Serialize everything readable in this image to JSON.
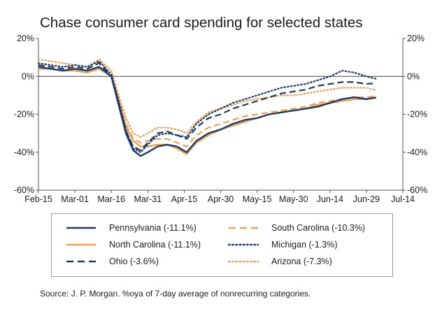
{
  "chart_data": {
    "type": "line",
    "title": "Chase consumer card spending for selected states",
    "x_ticks": [
      "Feb-15",
      "Mar-01",
      "Mar-16",
      "Mar-31",
      "Apr-15",
      "Apr-30",
      "May-15",
      "May-30",
      "Jun-14",
      "Jun-29",
      "Jul-14"
    ],
    "y_ticks_left": [
      "20%",
      "0%",
      "-20%",
      "-40%",
      "-60%"
    ],
    "y_ticks_right": [
      "20%",
      "0%",
      "-20%",
      "-40%",
      "-60%"
    ],
    "ylim": [
      -60,
      20
    ],
    "xlim": [
      "2020-02-15",
      "2020-07-14"
    ],
    "grid": false,
    "reference_line": 0,
    "legend_position": "bottom",
    "series": [
      {
        "name": "Pennsylvania (-11.1%)",
        "color": "#1f3864",
        "dash": "solid",
        "x": [
          "2020-02-15",
          "2020-02-20",
          "2020-02-25",
          "2020-03-01",
          "2020-03-06",
          "2020-03-11",
          "2020-03-16",
          "2020-03-19",
          "2020-03-22",
          "2020-03-25",
          "2020-03-28",
          "2020-03-31",
          "2020-04-04",
          "2020-04-08",
          "2020-04-12",
          "2020-04-16",
          "2020-04-20",
          "2020-04-25",
          "2020-04-30",
          "2020-05-05",
          "2020-05-10",
          "2020-05-15",
          "2020-05-20",
          "2020-05-25",
          "2020-05-30",
          "2020-06-04",
          "2020-06-09",
          "2020-06-14",
          "2020-06-19",
          "2020-06-24",
          "2020-06-29",
          "2020-07-03"
        ],
        "y": [
          5,
          4,
          3,
          4,
          3,
          5,
          0,
          -15,
          -30,
          -39,
          -42,
          -40,
          -37,
          -36,
          -37,
          -40,
          -34,
          -30,
          -28,
          -25,
          -23,
          -22,
          -20,
          -19,
          -18,
          -17,
          -16,
          -14,
          -12,
          -11,
          -12,
          -11.1
        ]
      },
      {
        "name": "North Carolina (-11.1%)",
        "color": "#e8a05a",
        "dash": "solid",
        "x": [
          "2020-02-15",
          "2020-02-20",
          "2020-02-25",
          "2020-03-01",
          "2020-03-06",
          "2020-03-11",
          "2020-03-16",
          "2020-03-19",
          "2020-03-22",
          "2020-03-25",
          "2020-03-28",
          "2020-03-31",
          "2020-04-04",
          "2020-04-08",
          "2020-04-12",
          "2020-04-16",
          "2020-04-20",
          "2020-04-25",
          "2020-04-30",
          "2020-05-05",
          "2020-05-10",
          "2020-05-15",
          "2020-05-20",
          "2020-05-25",
          "2020-05-30",
          "2020-06-04",
          "2020-06-09",
          "2020-06-14",
          "2020-06-19",
          "2020-06-24",
          "2020-06-29",
          "2020-07-03"
        ],
        "y": [
          4,
          4,
          3,
          3,
          2,
          4,
          0,
          -13,
          -26,
          -34,
          -37,
          -37,
          -36,
          -36,
          -38,
          -41,
          -35,
          -31,
          -28,
          -26,
          -24,
          -22,
          -20,
          -19,
          -18,
          -17,
          -15,
          -14,
          -13,
          -12,
          -12,
          -11.1
        ]
      },
      {
        "name": "Ohio (-3.6%)",
        "color": "#1f3864",
        "dash": "dashed",
        "x": [
          "2020-02-15",
          "2020-02-20",
          "2020-02-25",
          "2020-03-01",
          "2020-03-06",
          "2020-03-11",
          "2020-03-16",
          "2020-03-19",
          "2020-03-22",
          "2020-03-25",
          "2020-03-28",
          "2020-03-31",
          "2020-04-04",
          "2020-04-08",
          "2020-04-12",
          "2020-04-16",
          "2020-04-20",
          "2020-04-25",
          "2020-04-30",
          "2020-05-05",
          "2020-05-10",
          "2020-05-15",
          "2020-05-20",
          "2020-05-25",
          "2020-05-30",
          "2020-06-04",
          "2020-06-09",
          "2020-06-14",
          "2020-06-19",
          "2020-06-24",
          "2020-06-29",
          "2020-07-03"
        ],
        "y": [
          6,
          5,
          4,
          5,
          4,
          7,
          0,
          -14,
          -29,
          -37,
          -39,
          -35,
          -30,
          -29,
          -31,
          -33,
          -27,
          -22,
          -20,
          -17,
          -15,
          -13,
          -11,
          -9,
          -8,
          -7,
          -5,
          -4,
          -3,
          -3,
          -4,
          -3.6
        ]
      },
      {
        "name": "South Carolina (-10.3%)",
        "color": "#e8a05a",
        "dash": "dashed",
        "x": [
          "2020-02-15",
          "2020-02-20",
          "2020-02-25",
          "2020-03-01",
          "2020-03-06",
          "2020-03-11",
          "2020-03-16",
          "2020-03-19",
          "2020-03-22",
          "2020-03-25",
          "2020-03-28",
          "2020-03-31",
          "2020-04-04",
          "2020-04-08",
          "2020-04-12",
          "2020-04-16",
          "2020-04-20",
          "2020-04-25",
          "2020-04-30",
          "2020-05-05",
          "2020-05-10",
          "2020-05-15",
          "2020-05-20",
          "2020-05-25",
          "2020-05-30",
          "2020-06-04",
          "2020-06-09",
          "2020-06-14",
          "2020-06-19",
          "2020-06-24",
          "2020-06-29",
          "2020-07-03"
        ],
        "y": [
          5,
          4,
          3,
          4,
          3,
          5,
          0,
          -12,
          -25,
          -33,
          -35,
          -34,
          -33,
          -33,
          -35,
          -37,
          -31,
          -27,
          -25,
          -23,
          -21,
          -20,
          -19,
          -18,
          -17,
          -16,
          -14,
          -13,
          -12,
          -11,
          -11,
          -10.3
        ]
      },
      {
        "name": "Michigan (-1.3%)",
        "color": "#1f3864",
        "dash": "dotted",
        "x": [
          "2020-02-15",
          "2020-02-20",
          "2020-02-25",
          "2020-03-01",
          "2020-03-06",
          "2020-03-11",
          "2020-03-16",
          "2020-03-19",
          "2020-03-22",
          "2020-03-25",
          "2020-03-28",
          "2020-03-31",
          "2020-04-04",
          "2020-04-08",
          "2020-04-12",
          "2020-04-16",
          "2020-04-20",
          "2020-04-25",
          "2020-04-30",
          "2020-05-05",
          "2020-05-10",
          "2020-05-15",
          "2020-05-20",
          "2020-05-25",
          "2020-05-30",
          "2020-06-04",
          "2020-06-09",
          "2020-06-14",
          "2020-06-19",
          "2020-06-24",
          "2020-06-29",
          "2020-07-03"
        ],
        "y": [
          7,
          6,
          5,
          6,
          5,
          8,
          1,
          -13,
          -28,
          -38,
          -40,
          -36,
          -31,
          -30,
          -31,
          -32,
          -25,
          -20,
          -17,
          -14,
          -12,
          -10,
          -8,
          -6,
          -5,
          -4,
          -2,
          0,
          3,
          2,
          0,
          -1.3
        ]
      },
      {
        "name": "Arizona (-7.3%)",
        "color": "#e8a05a",
        "dash": "dotted",
        "x": [
          "2020-02-15",
          "2020-02-20",
          "2020-02-25",
          "2020-03-01",
          "2020-03-06",
          "2020-03-11",
          "2020-03-16",
          "2020-03-19",
          "2020-03-22",
          "2020-03-25",
          "2020-03-28",
          "2020-03-31",
          "2020-04-04",
          "2020-04-08",
          "2020-04-12",
          "2020-04-16",
          "2020-04-20",
          "2020-04-25",
          "2020-04-30",
          "2020-05-05",
          "2020-05-10",
          "2020-05-15",
          "2020-05-20",
          "2020-05-25",
          "2020-05-30",
          "2020-06-04",
          "2020-06-09",
          "2020-06-14",
          "2020-06-19",
          "2020-06-24",
          "2020-06-29",
          "2020-07-03"
        ],
        "y": [
          9,
          8,
          7,
          6,
          5,
          9,
          3,
          -10,
          -22,
          -30,
          -32,
          -30,
          -27,
          -27,
          -28,
          -30,
          -24,
          -19,
          -17,
          -15,
          -13,
          -12,
          -11,
          -10,
          -10,
          -9,
          -8,
          -7,
          -6,
          -6,
          -6,
          -7.3
        ]
      }
    ]
  },
  "source": "Source: J. P. Morgan. %oya of 7-day average of nonrecurring categories."
}
